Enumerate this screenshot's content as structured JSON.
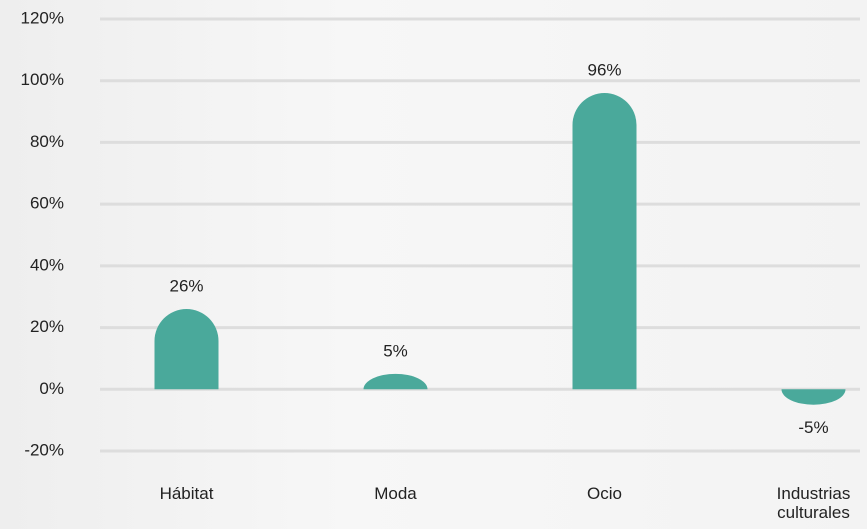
{
  "chart_data": {
    "type": "bar",
    "categories": [
      "Hábitat",
      "Moda",
      "Ocio",
      "Industrias culturales"
    ],
    "values": [
      26,
      5,
      96,
      -5
    ],
    "value_labels": [
      "26%",
      "5%",
      "96%",
      "-5%"
    ],
    "color": "#4aa99b",
    "ylim": [
      -20,
      120
    ],
    "yticks": [
      {
        "value": -20,
        "label": "-20%"
      },
      {
        "value": 0,
        "label": "0%"
      },
      {
        "value": 20,
        "label": "20%"
      },
      {
        "value": 40,
        "label": "40%"
      },
      {
        "value": 60,
        "label": "60%"
      },
      {
        "value": 80,
        "label": "80%"
      },
      {
        "value": 100,
        "label": "100%"
      },
      {
        "value": 120,
        "label": "120%"
      }
    ],
    "grid": true
  }
}
